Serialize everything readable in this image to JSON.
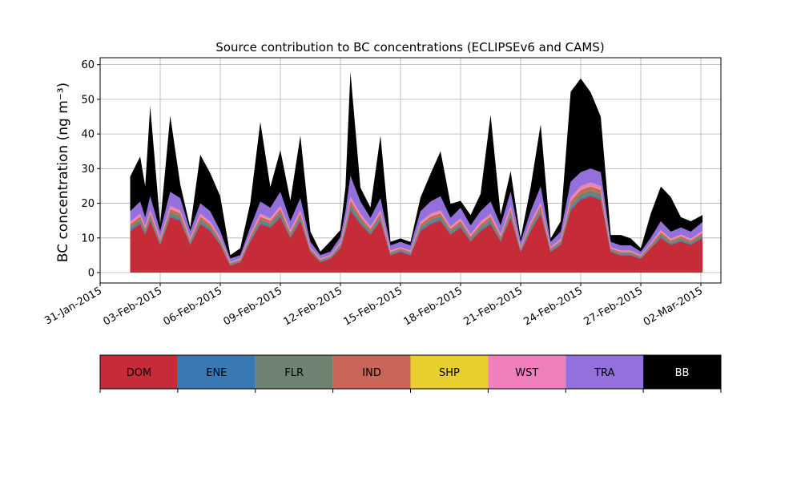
{
  "chart_data": {
    "type": "area",
    "stacked": true,
    "title": "Source contribution to BC concentrations (ECLIPSEv6 and CAMS)",
    "xlabel": "",
    "ylabel": "BC concentration (ng m⁻³)",
    "xlim": [
      "2015-01-31T00:00",
      "2015-03-03T00:00"
    ],
    "ylim": [
      -3,
      62
    ],
    "grid": true,
    "x_ticks": [
      "31-Jan-2015",
      "03-Feb-2015",
      "06-Feb-2015",
      "09-Feb-2015",
      "12-Feb-2015",
      "15-Feb-2015",
      "18-Feb-2015",
      "21-Feb-2015",
      "24-Feb-2015",
      "27-Feb-2015",
      "02-Mar-2015"
    ],
    "y_ticks": [
      0,
      10,
      20,
      30,
      40,
      50,
      60
    ],
    "legend_position": "bottom",
    "x": [
      "2015-02-01T12:00",
      "2015-02-02T00:00",
      "2015-02-02T06:00",
      "2015-02-02T12:00",
      "2015-02-03T00:00",
      "2015-02-03T12:00",
      "2015-02-04T00:00",
      "2015-02-04T12:00",
      "2015-02-05T00:00",
      "2015-02-05T12:00",
      "2015-02-06T00:00",
      "2015-02-06T12:00",
      "2015-02-07T00:00",
      "2015-02-07T12:00",
      "2015-02-08T00:00",
      "2015-02-08T12:00",
      "2015-02-09T00:00",
      "2015-02-09T12:00",
      "2015-02-10T00:00",
      "2015-02-10T12:00",
      "2015-02-11T00:00",
      "2015-02-11T12:00",
      "2015-02-12T00:00",
      "2015-02-12T06:00",
      "2015-02-12T12:00",
      "2015-02-13T00:00",
      "2015-02-13T12:00",
      "2015-02-14T00:00",
      "2015-02-14T12:00",
      "2015-02-15T00:00",
      "2015-02-15T12:00",
      "2015-02-16T00:00",
      "2015-02-16T12:00",
      "2015-02-17T00:00",
      "2015-02-17T12:00",
      "2015-02-18T00:00",
      "2015-02-18T12:00",
      "2015-02-19T00:00",
      "2015-02-19T12:00",
      "2015-02-20T00:00",
      "2015-02-20T12:00",
      "2015-02-21T00:00",
      "2015-02-21T12:00",
      "2015-02-22T00:00",
      "2015-02-22T12:00",
      "2015-02-23T00:00",
      "2015-02-23T12:00",
      "2015-02-24T00:00",
      "2015-02-24T12:00",
      "2015-02-25T00:00",
      "2015-02-25T12:00",
      "2015-02-26T00:00",
      "2015-02-26T12:00",
      "2015-02-27T00:00",
      "2015-02-27T12:00",
      "2015-02-28T00:00",
      "2015-02-28T12:00",
      "2015-03-01T00:00",
      "2015-03-01T12:00",
      "2015-03-02T02:00"
    ],
    "series": [
      {
        "name": "DOM",
        "color": "#c62b38",
        "values": [
          12,
          14,
          11,
          15,
          8,
          16,
          15,
          8,
          14,
          12,
          8,
          2,
          3,
          9,
          14,
          13,
          16,
          10,
          15,
          6,
          3,
          4,
          7,
          12,
          18,
          14,
          11,
          15,
          5,
          6,
          5,
          12,
          14,
          15,
          11,
          13,
          9,
          12,
          14,
          9,
          16,
          6,
          12,
          17,
          6,
          8,
          18,
          21,
          22,
          21,
          6,
          5,
          5,
          4,
          7,
          10,
          8,
          9,
          8,
          10
        ]
      },
      {
        "name": "ENE",
        "color": "#3878b3",
        "values": [
          0.4,
          0.4,
          0.4,
          0.4,
          0.3,
          0.4,
          0.4,
          0.3,
          0.4,
          0.4,
          0.3,
          0.2,
          0.2,
          0.3,
          0.4,
          0.4,
          0.4,
          0.3,
          0.4,
          0.2,
          0.2,
          0.2,
          0.3,
          0.4,
          0.5,
          0.4,
          0.3,
          0.4,
          0.2,
          0.2,
          0.2,
          0.4,
          0.4,
          0.4,
          0.3,
          0.4,
          0.3,
          0.4,
          0.4,
          0.3,
          0.4,
          0.2,
          0.4,
          0.4,
          0.2,
          0.3,
          0.5,
          0.5,
          0.5,
          0.5,
          0.2,
          0.2,
          0.2,
          0.2,
          0.2,
          0.3,
          0.3,
          0.3,
          0.3,
          0.3
        ]
      },
      {
        "name": "FLR",
        "color": "#6e8272",
        "values": [
          0.8,
          0.9,
          0.7,
          0.9,
          0.6,
          1,
          0.9,
          0.6,
          0.9,
          0.8,
          0.6,
          0.3,
          0.3,
          0.6,
          0.9,
          0.8,
          1,
          0.7,
          0.9,
          0.4,
          0.3,
          0.3,
          0.5,
          0.8,
          1.2,
          0.9,
          0.7,
          0.9,
          0.4,
          0.4,
          0.4,
          0.8,
          0.9,
          0.9,
          0.7,
          0.8,
          0.6,
          0.8,
          0.9,
          0.6,
          1,
          0.4,
          0.8,
          1,
          0.4,
          0.5,
          1.1,
          1.2,
          1.2,
          1.2,
          0.4,
          0.4,
          0.4,
          0.3,
          0.5,
          0.7,
          0.5,
          0.6,
          0.5,
          0.6
        ]
      },
      {
        "name": "IND",
        "color": "#c8665a",
        "values": [
          0.8,
          0.9,
          0.7,
          0.9,
          0.6,
          1,
          0.9,
          0.6,
          0.9,
          0.8,
          0.6,
          0.3,
          0.3,
          0.6,
          0.9,
          0.8,
          1,
          0.7,
          0.9,
          0.4,
          0.3,
          0.3,
          0.5,
          0.8,
          1.2,
          0.9,
          0.7,
          0.9,
          0.4,
          0.4,
          0.4,
          0.8,
          0.9,
          0.9,
          0.7,
          0.8,
          0.6,
          0.8,
          0.9,
          0.6,
          1,
          0.4,
          0.8,
          1,
          0.4,
          0.5,
          1.1,
          1.2,
          1.2,
          1.2,
          0.4,
          0.4,
          0.4,
          0.3,
          0.5,
          0.7,
          0.5,
          0.6,
          0.5,
          0.6
        ]
      },
      {
        "name": "SHP",
        "color": "#e8cf2e",
        "values": [
          0.1,
          0.1,
          0.1,
          0.1,
          0.1,
          0.1,
          0.1,
          0.1,
          0.1,
          0.1,
          0.1,
          0.05,
          0.05,
          0.1,
          0.1,
          0.1,
          0.1,
          0.1,
          0.1,
          0.05,
          0.05,
          0.05,
          0.1,
          0.1,
          0.1,
          0.1,
          0.1,
          0.1,
          0.05,
          0.05,
          0.05,
          0.1,
          0.1,
          0.1,
          0.1,
          0.1,
          0.1,
          0.1,
          0.1,
          0.1,
          0.1,
          0.05,
          0.1,
          0.1,
          0.05,
          0.1,
          0.1,
          0.1,
          0.1,
          0.1,
          0.05,
          0.05,
          0.05,
          0.05,
          0.05,
          0.1,
          0.1,
          0.1,
          0.1,
          0.1
        ]
      },
      {
        "name": "WST",
        "color": "#f07fbb",
        "values": [
          0.6,
          0.7,
          0.5,
          0.7,
          0.4,
          0.8,
          0.7,
          0.4,
          0.7,
          0.6,
          0.4,
          0.2,
          0.2,
          0.5,
          0.7,
          0.6,
          0.8,
          0.5,
          0.7,
          0.3,
          0.2,
          0.2,
          0.4,
          0.6,
          0.9,
          0.7,
          0.5,
          0.7,
          0.3,
          0.3,
          0.3,
          0.6,
          0.7,
          0.7,
          0.5,
          0.6,
          0.5,
          0.6,
          0.7,
          0.5,
          0.8,
          0.3,
          0.6,
          0.8,
          0.3,
          0.4,
          0.9,
          1,
          1,
          1,
          0.3,
          0.3,
          0.3,
          0.2,
          0.3,
          0.5,
          0.4,
          0.4,
          0.4,
          0.5
        ]
      },
      {
        "name": "TRA",
        "color": "#9370db",
        "values": [
          3,
          3.5,
          2.5,
          4,
          2,
          4,
          3.5,
          2,
          3,
          3,
          2,
          1,
          1,
          2,
          3.5,
          3,
          4,
          2.5,
          3.5,
          1.5,
          1,
          1,
          1.5,
          3,
          6,
          3.5,
          2.5,
          3.5,
          1.5,
          1.5,
          1.5,
          3,
          3.5,
          4,
          2.5,
          3,
          2.5,
          3,
          3.5,
          2.5,
          4,
          1.5,
          3,
          4.5,
          1.5,
          2,
          4.5,
          4,
          4,
          4,
          1.5,
          1.5,
          1.5,
          1,
          1.5,
          2.5,
          2,
          2,
          2,
          2.5
        ]
      },
      {
        "name": "BB",
        "color": "#000000",
        "values": [
          10,
          13,
          9,
          26,
          2,
          22,
          4,
          1,
          14,
          11,
          10,
          1,
          2,
          7,
          23,
          6,
          12,
          6,
          18,
          3,
          1,
          3,
          2,
          7,
          30,
          4,
          3,
          18,
          1,
          1,
          1,
          4,
          8,
          13,
          4,
          2,
          3,
          5,
          25,
          3,
          6,
          1,
          7,
          18,
          1,
          3,
          26,
          27,
          22,
          16,
          2,
          3,
          2,
          1,
          7,
          10,
          10,
          3,
          3,
          2
        ]
      }
    ]
  }
}
